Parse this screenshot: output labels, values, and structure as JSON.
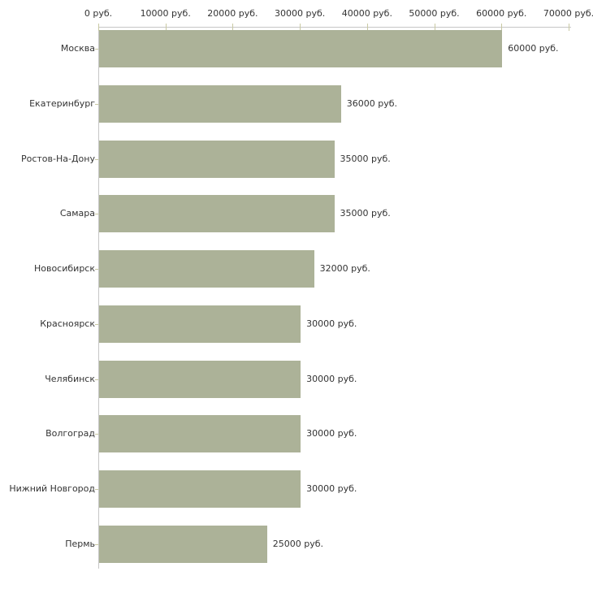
{
  "chart_data": {
    "type": "bar",
    "orientation": "horizontal",
    "title": "",
    "xlabel": "",
    "ylabel": "",
    "unit": "руб.",
    "grid": false,
    "legend": "none",
    "categories": [
      "Москва",
      "Екатеринбург",
      "Ростов-На-Дону",
      "Самара",
      "Новосибирск",
      "Красноярск",
      "Челябинск",
      "Волгоград",
      "Нижний Новгород",
      "Пермь"
    ],
    "values": [
      60000,
      36000,
      35000,
      35000,
      32000,
      30000,
      30000,
      30000,
      30000,
      25000
    ],
    "value_labels": [
      "60000 руб.",
      "36000 руб.",
      "35000 руб.",
      "35000 руб.",
      "32000 руб.",
      "30000 руб.",
      "30000 руб.",
      "30000 руб.",
      "30000 руб.",
      "25000 руб."
    ],
    "x_axis": {
      "min": 0,
      "max": 70000,
      "tick_values": [
        0,
        10000,
        20000,
        30000,
        40000,
        50000,
        60000,
        70000
      ],
      "tick_labels": [
        "0 руб.",
        "10000 руб.",
        "20000 руб.",
        "30000 руб.",
        "40000 руб.",
        "50000 руб.",
        "60000 руб.",
        "70000 руб."
      ]
    },
    "colors": {
      "bar": "#acb298",
      "axis_line": "#c6c6c6",
      "tick": "#c9c9a3",
      "text": "#333333",
      "background": "#ffffff"
    }
  }
}
